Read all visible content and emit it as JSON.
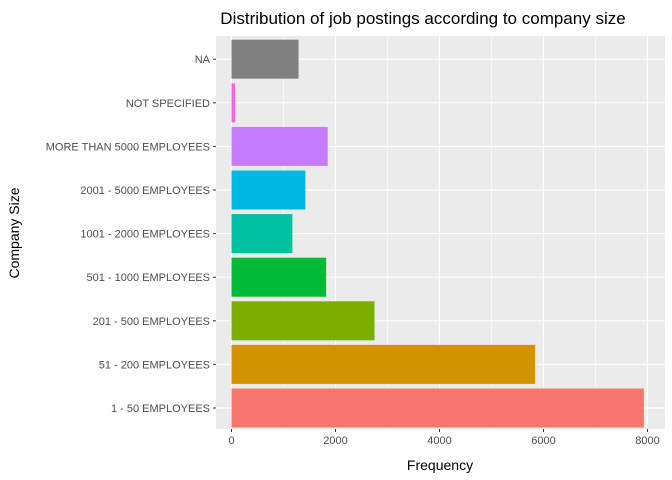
{
  "chart_data": {
    "type": "bar",
    "orientation": "horizontal",
    "title": "Distribution of job postings according to company size",
    "xlabel": "Frequency",
    "ylabel": "Company Size",
    "categories": [
      "1 - 50 EMPLOYEES",
      "51 - 200 EMPLOYEES",
      "201 - 500 EMPLOYEES",
      "501 - 1000 EMPLOYEES",
      "1001 - 2000 EMPLOYEES",
      "2001 - 5000 EMPLOYEES",
      "MORE THAN 5000 EMPLOYEES",
      "NOT SPECIFIED",
      "NA"
    ],
    "values": [
      7930,
      5840,
      2750,
      1820,
      1170,
      1420,
      1850,
      70,
      1290
    ],
    "colors": [
      "#F8766D",
      "#D39200",
      "#7CAE00",
      "#00BA38",
      "#00C19F",
      "#00B9E3",
      "#C77CFF",
      "#F564E3",
      "#808080"
    ],
    "xlim": [
      0,
      8000
    ],
    "xticks": [
      "0",
      "2000",
      "4000",
      "6000",
      "8000"
    ],
    "grid": true,
    "legend": "none",
    "panel_background": "#EBEBEB",
    "grid_color": "#FFFFFF"
  }
}
